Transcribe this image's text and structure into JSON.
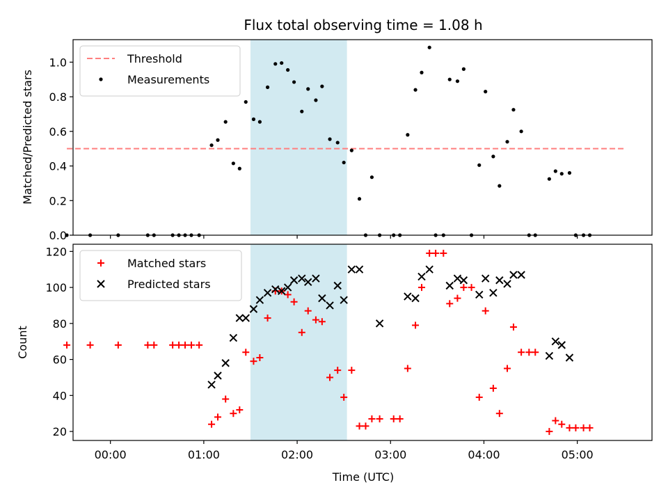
{
  "chart_data": [
    {
      "type": "scatter",
      "title": "Flux total observing time = 1.08 h",
      "ylabel": "Matched/Predicted stars",
      "xlabel": "",
      "xlim": [
        "-00:24",
        "05:48"
      ],
      "ylim": [
        0,
        1.13
      ],
      "x_ticks": [
        "00:00",
        "01:00",
        "02:00",
        "03:00",
        "04:00",
        "05:00"
      ],
      "x_ticklabels_visible": false,
      "y_ticks": [
        0.0,
        0.2,
        0.4,
        0.6,
        0.8,
        1.0
      ],
      "y_ticklabels": [
        "0.0",
        "0.2",
        "0.4",
        "0.6",
        "0.8",
        "1.0"
      ],
      "grid": false,
      "legend_position": "upper-left",
      "shaded_span": {
        "x_start": "01:30",
        "x_end": "02:32",
        "color": "#add8e6"
      },
      "threshold": {
        "name": "Threshold",
        "value": 0.5,
        "x_start": "-00:28",
        "x_end": "05:31",
        "color": "#ff7f7f",
        "style": "dashed"
      },
      "series": [
        {
          "name": "Measurements",
          "color": "#000000",
          "marker": "dot",
          "points": [
            [
              "-00:28",
              0.0
            ],
            [
              "-00:13",
              0.0
            ],
            [
              "00:05",
              0.0
            ],
            [
              "00:24",
              0.0
            ],
            [
              "00:28",
              0.0
            ],
            [
              "00:40",
              0.0
            ],
            [
              "00:44",
              0.0
            ],
            [
              "00:48",
              0.0
            ],
            [
              "00:52",
              0.0
            ],
            [
              "00:57",
              0.0
            ],
            [
              "01:05",
              0.52
            ],
            [
              "01:09",
              0.55
            ],
            [
              "01:14",
              0.655
            ],
            [
              "01:19",
              0.415
            ],
            [
              "01:23",
              0.385
            ],
            [
              "01:27",
              0.77
            ],
            [
              "01:32",
              0.67
            ],
            [
              "01:36",
              0.655
            ],
            [
              "01:41",
              0.855
            ],
            [
              "01:46",
              0.99
            ],
            [
              "01:50",
              0.995
            ],
            [
              "01:54",
              0.955
            ],
            [
              "01:58",
              0.885
            ],
            [
              "02:03",
              0.715
            ],
            [
              "02:07",
              0.845
            ],
            [
              "02:12",
              0.78
            ],
            [
              "02:16",
              0.86
            ],
            [
              "02:21",
              0.555
            ],
            [
              "02:26",
              0.535
            ],
            [
              "02:30",
              0.42
            ],
            [
              "02:35",
              0.49
            ],
            [
              "02:40",
              0.21
            ],
            [
              "02:44",
              0.0
            ],
            [
              "02:48",
              0.335
            ],
            [
              "02:53",
              0.0
            ],
            [
              "03:02",
              0.0
            ],
            [
              "03:06",
              0.0
            ],
            [
              "03:11",
              0.58
            ],
            [
              "03:16",
              0.84
            ],
            [
              "03:20",
              0.94
            ],
            [
              "03:25",
              1.085
            ],
            [
              "03:29",
              0.0
            ],
            [
              "03:34",
              0.0
            ],
            [
              "03:38",
              0.9
            ],
            [
              "03:43",
              0.89
            ],
            [
              "03:47",
              0.96
            ],
            [
              "03:52",
              0.0
            ],
            [
              "03:57",
              0.405
            ],
            [
              "04:01",
              0.83
            ],
            [
              "04:06",
              0.455
            ],
            [
              "04:10",
              0.285
            ],
            [
              "04:15",
              0.54
            ],
            [
              "04:19",
              0.725
            ],
            [
              "04:24",
              0.6
            ],
            [
              "04:29",
              0.0
            ],
            [
              "04:33",
              0.0
            ],
            [
              "04:42",
              0.325
            ],
            [
              "04:46",
              0.37
            ],
            [
              "04:50",
              0.355
            ],
            [
              "04:55",
              0.36
            ],
            [
              "04:59",
              0.0
            ],
            [
              "05:04",
              0.0
            ],
            [
              "05:08",
              0.0
            ]
          ]
        }
      ]
    },
    {
      "type": "scatter",
      "title": "",
      "xlabel": "Time (UTC)",
      "ylabel": "Count",
      "xlim": [
        "-00:24",
        "05:48"
      ],
      "ylim": [
        15,
        124
      ],
      "x_ticks": [
        "00:00",
        "01:00",
        "02:00",
        "03:00",
        "04:00",
        "05:00"
      ],
      "y_ticks": [
        20,
        40,
        60,
        80,
        100,
        120
      ],
      "grid": false,
      "legend_position": "upper-left",
      "shaded_span": {
        "x_start": "01:30",
        "x_end": "02:32",
        "color": "#add8e6"
      },
      "series": [
        {
          "name": "Matched stars",
          "color": "#ff0000",
          "marker": "plus",
          "points": [
            [
              "-00:28",
              68
            ],
            [
              "-00:13",
              68
            ],
            [
              "00:05",
              68
            ],
            [
              "00:24",
              68
            ],
            [
              "00:28",
              68
            ],
            [
              "00:40",
              68
            ],
            [
              "00:44",
              68
            ],
            [
              "00:48",
              68
            ],
            [
              "00:52",
              68
            ],
            [
              "00:57",
              68
            ],
            [
              "01:05",
              24
            ],
            [
              "01:09",
              28
            ],
            [
              "01:14",
              38
            ],
            [
              "01:19",
              30
            ],
            [
              "01:23",
              32
            ],
            [
              "01:27",
              64
            ],
            [
              "01:32",
              59
            ],
            [
              "01:36",
              61
            ],
            [
              "01:41",
              83
            ],
            [
              "01:46",
              98
            ],
            [
              "01:50",
              98
            ],
            [
              "01:54",
              96
            ],
            [
              "01:58",
              92
            ],
            [
              "02:03",
              75
            ],
            [
              "02:07",
              87
            ],
            [
              "02:12",
              82
            ],
            [
              "02:16",
              81
            ],
            [
              "02:21",
              50
            ],
            [
              "02:26",
              54
            ],
            [
              "02:30",
              39
            ],
            [
              "02:35",
              54
            ],
            [
              "02:40",
              23
            ],
            [
              "02:44",
              23
            ],
            [
              "02:48",
              27
            ],
            [
              "02:53",
              27
            ],
            [
              "03:02",
              27
            ],
            [
              "03:06",
              27
            ],
            [
              "03:11",
              55
            ],
            [
              "03:16",
              79
            ],
            [
              "03:20",
              100
            ],
            [
              "03:25",
              119
            ],
            [
              "03:29",
              119
            ],
            [
              "03:34",
              119
            ],
            [
              "03:38",
              91
            ],
            [
              "03:43",
              94
            ],
            [
              "03:47",
              100
            ],
            [
              "03:52",
              100
            ],
            [
              "03:57",
              39
            ],
            [
              "04:01",
              87
            ],
            [
              "04:06",
              44
            ],
            [
              "04:10",
              30
            ],
            [
              "04:15",
              55
            ],
            [
              "04:19",
              78
            ],
            [
              "04:24",
              64
            ],
            [
              "04:29",
              64
            ],
            [
              "04:33",
              64
            ],
            [
              "04:42",
              20
            ],
            [
              "04:46",
              26
            ],
            [
              "04:50",
              24
            ],
            [
              "04:55",
              22
            ],
            [
              "04:59",
              22
            ],
            [
              "05:04",
              22
            ],
            [
              "05:08",
              22
            ]
          ]
        },
        {
          "name": "Predicted stars",
          "color": "#000000",
          "marker": "x",
          "points": [
            [
              "01:05",
              46
            ],
            [
              "01:09",
              51
            ],
            [
              "01:14",
              58
            ],
            [
              "01:19",
              72
            ],
            [
              "01:23",
              83
            ],
            [
              "01:27",
              83
            ],
            [
              "01:32",
              88
            ],
            [
              "01:36",
              93
            ],
            [
              "01:41",
              97
            ],
            [
              "01:46",
              99
            ],
            [
              "01:50",
              98
            ],
            [
              "01:54",
              100
            ],
            [
              "01:58",
              104
            ],
            [
              "02:03",
              105
            ],
            [
              "02:07",
              103
            ],
            [
              "02:12",
              105
            ],
            [
              "02:16",
              94
            ],
            [
              "02:21",
              90
            ],
            [
              "02:26",
              101
            ],
            [
              "02:30",
              93
            ],
            [
              "02:35",
              110
            ],
            [
              "02:40",
              110
            ],
            [
              "02:53",
              80
            ],
            [
              "03:11",
              95
            ],
            [
              "03:16",
              94
            ],
            [
              "03:20",
              106
            ],
            [
              "03:25",
              110
            ],
            [
              "03:38",
              101
            ],
            [
              "03:43",
              105
            ],
            [
              "03:47",
              104
            ],
            [
              "03:57",
              96
            ],
            [
              "04:01",
              105
            ],
            [
              "04:06",
              97
            ],
            [
              "04:10",
              104
            ],
            [
              "04:15",
              102
            ],
            [
              "04:19",
              107
            ],
            [
              "04:24",
              107
            ],
            [
              "04:42",
              62
            ],
            [
              "04:46",
              70
            ],
            [
              "04:50",
              68
            ],
            [
              "04:55",
              61
            ]
          ]
        }
      ]
    }
  ]
}
